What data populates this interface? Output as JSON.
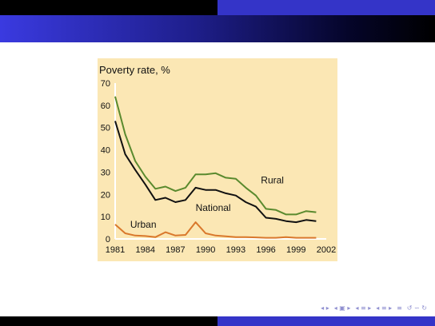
{
  "chart_data": {
    "type": "line",
    "title": "Poverty rate, %",
    "xlabel": "",
    "ylabel": "",
    "xlim": [
      1981,
      2002
    ],
    "ylim": [
      0,
      70
    ],
    "x_ticks": [
      "1981",
      "1984",
      "1987",
      "1990",
      "1993",
      "1996",
      "1999",
      "2002"
    ],
    "y_ticks": [
      "0",
      "10",
      "20",
      "30",
      "40",
      "50",
      "60",
      "70"
    ],
    "grid": false,
    "x": [
      1981,
      1982,
      1983,
      1984,
      1985,
      1986,
      1987,
      1988,
      1989,
      1990,
      1991,
      1992,
      1993,
      1994,
      1995,
      1996,
      1997,
      1998,
      1999,
      2000,
      2001
    ],
    "series": [
      {
        "name": "Rural",
        "color": "#5a8a2e",
        "values": [
          64,
          47,
          35,
          28,
          22.5,
          23.5,
          21.5,
          23,
          29,
          29,
          29.5,
          27.5,
          27,
          23,
          19.5,
          13.5,
          13,
          11,
          11,
          12.5,
          12
        ]
      },
      {
        "name": "National",
        "color": "#111111",
        "values": [
          53,
          38,
          31,
          24.5,
          17.5,
          18.5,
          16.5,
          17.5,
          23,
          22,
          22,
          20.5,
          19.5,
          16.5,
          14.5,
          9.5,
          9,
          8,
          7.5,
          8.5,
          8
        ]
      },
      {
        "name": "Urban",
        "color": "#d9782c",
        "values": [
          6.5,
          2.5,
          1.5,
          1.3,
          0.8,
          3,
          1.5,
          1.8,
          7.5,
          2.5,
          1.5,
          1.2,
          0.8,
          0.8,
          0.7,
          0.5,
          0.5,
          0.8,
          0.5,
          0.5,
          0.5
        ]
      }
    ],
    "panel_color": "#fbe7b4",
    "axis_color": "#ffffff"
  },
  "nav": {
    "icons": [
      "◂ ▸",
      "◂ ▣ ▸",
      "◂ ≡ ▸",
      "◂ ≡ ▸",
      "≡",
      "↺ ∽ ↻"
    ]
  }
}
